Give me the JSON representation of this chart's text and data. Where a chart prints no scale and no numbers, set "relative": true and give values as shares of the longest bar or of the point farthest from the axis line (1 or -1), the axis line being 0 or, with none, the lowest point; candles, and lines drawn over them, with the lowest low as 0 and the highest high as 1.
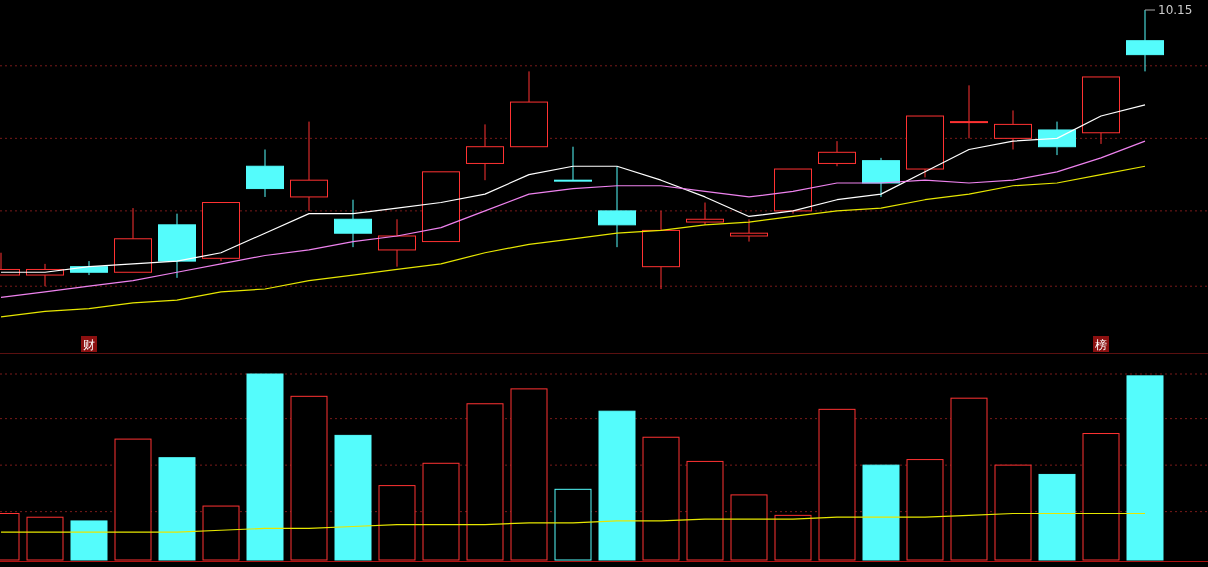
{
  "chart_data": [
    {
      "type": "candlestick",
      "relative": true,
      "categories": [
        null,
        null,
        null,
        null,
        null,
        null,
        null,
        null,
        null,
        null,
        null,
        null,
        null,
        null,
        null,
        null,
        null,
        null,
        null,
        null,
        null,
        null,
        null,
        null,
        null,
        null,
        null
      ],
      "ohlc": [
        [
          0.05,
          0.13,
          0.05,
          0.07
        ],
        [
          0.05,
          0.09,
          0.01,
          0.07
        ],
        [
          0.08,
          0.1,
          0.05,
          0.06
        ],
        [
          0.06,
          0.29,
          0.06,
          0.18
        ],
        [
          0.23,
          0.27,
          0.04,
          0.1
        ],
        [
          0.11,
          0.31,
          0.1,
          0.31
        ],
        [
          0.44,
          0.5,
          0.33,
          0.36
        ],
        [
          0.33,
          0.6,
          0.28,
          0.39
        ],
        [
          0.25,
          0.32,
          0.15,
          0.2
        ],
        [
          0.14,
          0.25,
          0.08,
          0.19
        ],
        [
          0.17,
          0.42,
          0.17,
          0.42
        ],
        [
          0.45,
          0.59,
          0.39,
          0.51
        ],
        [
          0.51,
          0.78,
          0.51,
          0.67
        ],
        [
          0.39,
          0.51,
          0.39,
          0.39
        ],
        [
          0.28,
          0.44,
          0.15,
          0.23
        ],
        [
          0.08,
          0.28,
          0,
          0.21
        ],
        [
          0.24,
          0.31,
          0.23,
          0.25
        ],
        [
          0.19,
          0.25,
          0.17,
          0.2
        ],
        [
          0.28,
          0.43,
          0.27,
          0.43
        ],
        [
          0.45,
          0.53,
          0.44,
          0.49
        ],
        [
          0.46,
          0.47,
          0.33,
          0.38
        ],
        [
          0.43,
          0.62,
          0.4,
          0.62
        ],
        [
          0.6,
          0.73,
          0.54,
          0.6
        ],
        [
          0.54,
          0.64,
          0.5,
          0.59
        ],
        [
          0.57,
          0.6,
          0.48,
          0.51
        ],
        [
          0.56,
          0.76,
          0.52,
          0.76
        ],
        [
          0.89,
          1,
          0.78,
          0.84
        ]
      ],
      "colors": [
        "#ff3232",
        "#ff3232",
        "#54fcfc",
        "#ff3232",
        "#54fcfc",
        "#ff3232",
        "#54fcfc",
        "#ff3232",
        "#54fcfc",
        "#ff3232",
        "#ff3232",
        "#ff3232",
        "#ff3232",
        "#54fcfc",
        "#54fcfc",
        "#ff3232",
        "#ff3232",
        "#ff3232",
        "#ff3232",
        "#ff3232",
        "#54fcfc",
        "#ff3232",
        "#ff3232",
        "#ff3232",
        "#54fcfc",
        "#ff3232",
        "#54fcfc"
      ],
      "series": [
        {
          "type": "line",
          "color": "#ffffff",
          "values": [
            0.06,
            0.06,
            0.08,
            0.09,
            0.1,
            0.13,
            0.2,
            0.27,
            0.27,
            0.29,
            0.31,
            0.34,
            0.41,
            0.44,
            0.44,
            0.39,
            0.33,
            0.26,
            0.28,
            0.32,
            0.34,
            0.42,
            0.5,
            0.53,
            0.54,
            0.62,
            0.66
          ]
        },
        {
          "type": "line",
          "color": "#ee82ee",
          "values": [
            -0.03,
            -0.01,
            0.01,
            0.03,
            0.06,
            0.09,
            0.12,
            0.14,
            0.17,
            0.19,
            0.22,
            0.28,
            0.34,
            0.36,
            0.37,
            0.37,
            0.35,
            0.33,
            0.35,
            0.38,
            0.38,
            0.39,
            0.38,
            0.39,
            0.42,
            0.47,
            0.53
          ]
        },
        {
          "type": "line",
          "color": "#e6e600",
          "values": [
            -0.1,
            -0.08,
            -0.07,
            -0.05,
            -0.04,
            -0.01,
            0.0,
            0.03,
            0.05,
            0.07,
            0.09,
            0.13,
            0.16,
            0.18,
            0.2,
            0.21,
            0.23,
            0.24,
            0.26,
            0.28,
            0.29,
            0.32,
            0.34,
            0.37,
            0.38,
            0.41,
            0.44
          ]
        }
      ],
      "ref_lines": [
        {
          "axis": "y",
          "value": 0.8,
          "color": "#7a1a1a",
          "line_style": "dotted"
        },
        {
          "axis": "y",
          "value": 0.54,
          "color": "#7a1a1a",
          "line_style": "dotted"
        },
        {
          "axis": "y",
          "value": 0.28,
          "color": "#7a1a1a",
          "line_style": "dotted"
        },
        {
          "axis": "y",
          "value": 0.01,
          "color": "#7a1a1a",
          "line_style": "dotted"
        }
      ],
      "annotations": [
        "10.15",
        "财",
        "榜"
      ]
    },
    {
      "type": "bar",
      "relative": true,
      "ref_lines": [
        {
          "axis": "y",
          "value": 1.0,
          "color": "#7a1a1a",
          "line_style": "dotted"
        },
        {
          "axis": "y",
          "value": 0.76,
          "color": "#7a1a1a",
          "line_style": "dotted"
        },
        {
          "axis": "y",
          "value": 0.51,
          "color": "#7a1a1a",
          "line_style": "dotted"
        },
        {
          "axis": "y",
          "value": 0.26,
          "color": "#7a1a1a",
          "line_style": "dotted"
        }
      ],
      "categories": [
        null,
        null,
        null,
        null,
        null,
        null,
        null,
        null,
        null,
        null,
        null,
        null,
        null,
        null,
        null,
        null,
        null,
        null,
        null,
        null,
        null,
        null,
        null,
        null,
        null,
        null,
        null
      ],
      "series": [
        {
          "type": "bar",
          "colors": [
            "#ff3232",
            "#ff3232",
            "#54fcfc",
            "#ff3232",
            "#54fcfc",
            "#ff3232",
            "#54fcfc",
            "#ff3232",
            "#54fcfc",
            "#ff3232",
            "#ff3232",
            "#ff3232",
            "#ff3232",
            "#54fcfc",
            "#54fcfc",
            "#ff3232",
            "#ff3232",
            "#ff3232",
            "#ff3232",
            "#ff3232",
            "#54fcfc",
            "#ff3232",
            "#ff3232",
            "#ff3232",
            "#54fcfc",
            "#ff3232",
            "#54fcfc"
          ],
          "values": [
            0.25,
            0.23,
            0.21,
            0.65,
            0.55,
            0.29,
            1,
            0.88,
            0.67,
            0.4,
            0.52,
            0.84,
            0.92,
            0.38,
            0.8,
            0.66,
            0.53,
            0.35,
            0.24,
            0.81,
            0.51,
            0.54,
            0.87,
            0.51,
            0.46,
            0.68,
            0.99
          ]
        },
        {
          "type": "line",
          "color": "#e6e600",
          "values": [
            0.15,
            0.15,
            0.15,
            0.15,
            0.15,
            0.16,
            0.17,
            0.17,
            0.18,
            0.19,
            0.19,
            0.19,
            0.2,
            0.2,
            0.21,
            0.21,
            0.22,
            0.22,
            0.22,
            0.23,
            0.23,
            0.23,
            0.24,
            0.25,
            0.25,
            0.25,
            0.25
          ]
        }
      ]
    }
  ]
}
